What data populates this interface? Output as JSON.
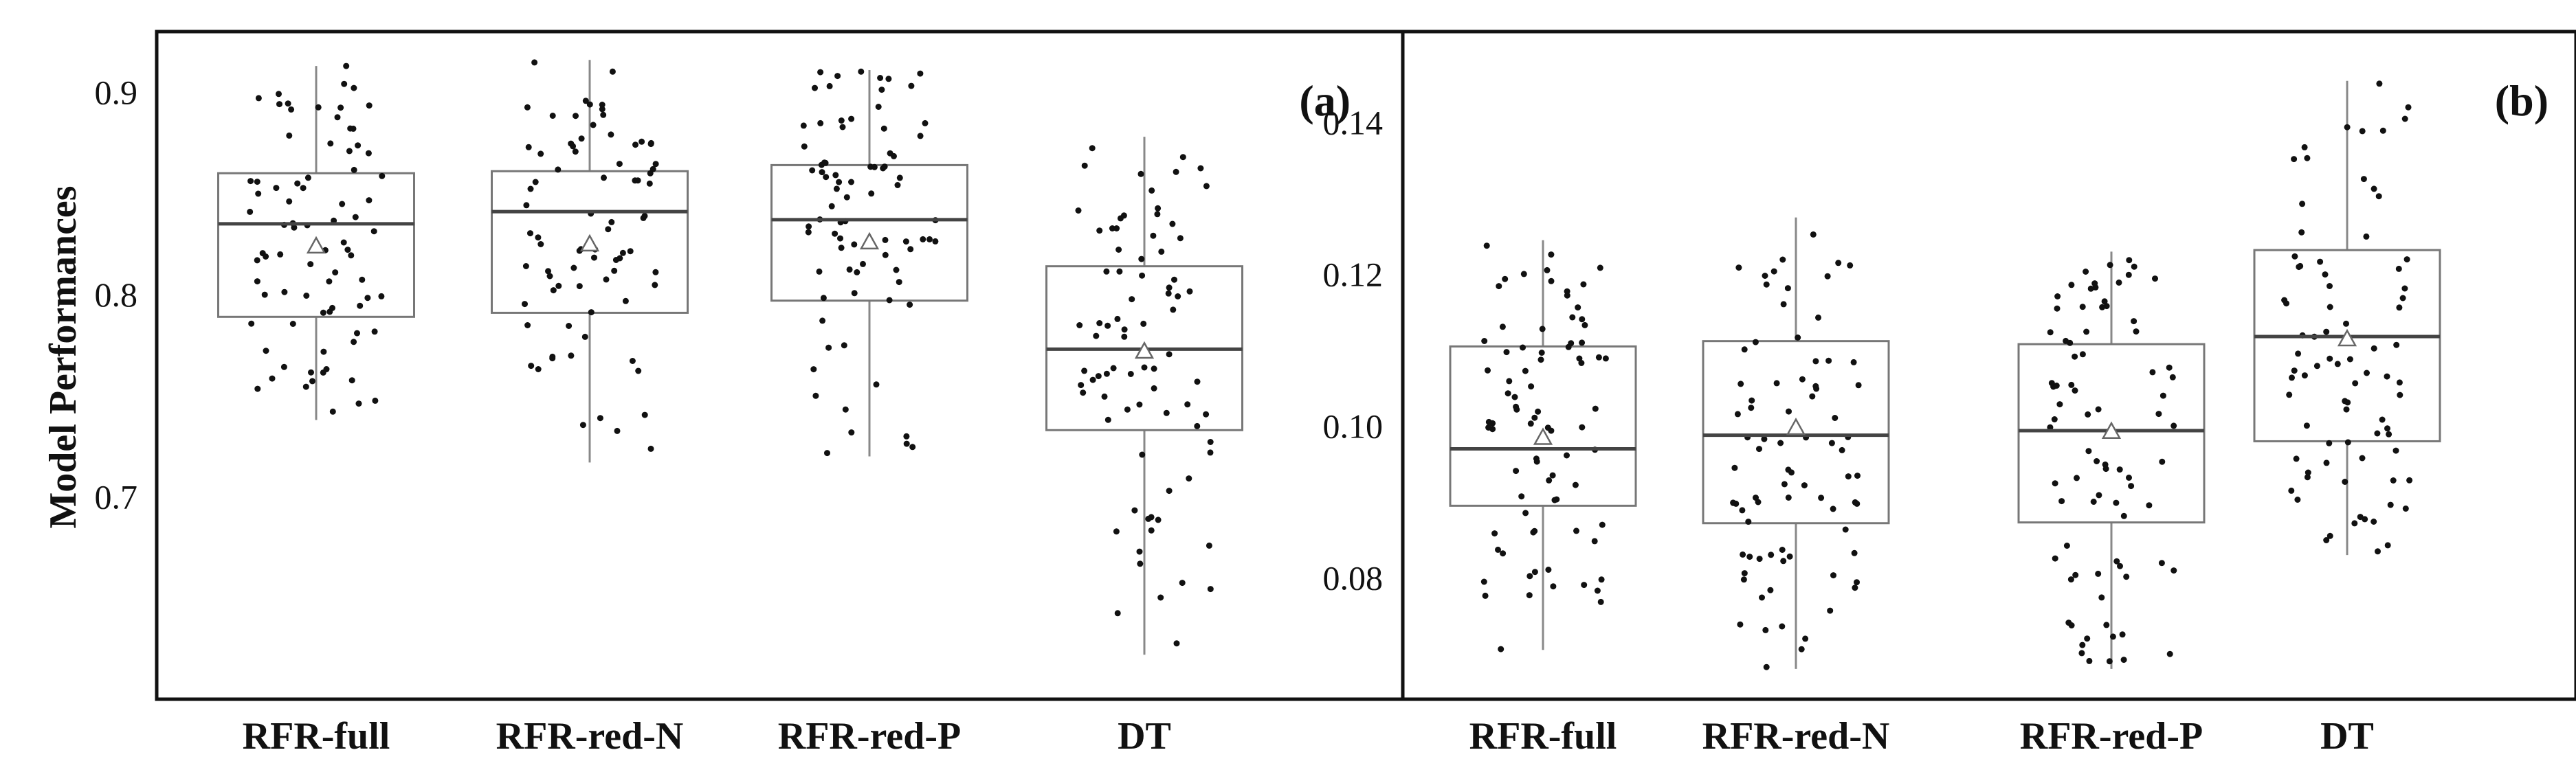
{
  "chart_data": [
    {
      "type": "box",
      "panel": "(a)",
      "ylabel": "Model Performances",
      "categories": [
        "RFR-full",
        "RFR-red-N",
        "RFR-red-P",
        "DT"
      ],
      "yticks": [
        0.7,
        0.8,
        0.9
      ],
      "ytick_labels": [
        "0.7",
        "0.8",
        "0.9"
      ],
      "ylim": [
        0.6,
        0.93
      ],
      "boxes": [
        {
          "name": "RFR-full",
          "q1": 0.789,
          "median": 0.835,
          "q3": 0.86,
          "whisker_low": 0.738,
          "whisker_high": 0.913,
          "mean": 0.824
        },
        {
          "name": "RFR-red-N",
          "q1": 0.791,
          "median": 0.841,
          "q3": 0.861,
          "whisker_low": 0.717,
          "whisker_high": 0.916,
          "mean": 0.825
        },
        {
          "name": "RFR-red-P",
          "q1": 0.797,
          "median": 0.837,
          "q3": 0.864,
          "whisker_low": 0.72,
          "whisker_high": 0.911,
          "mean": 0.826
        },
        {
          "name": "DT",
          "q1": 0.733,
          "median": 0.773,
          "q3": 0.814,
          "whisker_low": 0.622,
          "whisker_high": 0.878,
          "mean": 0.772
        }
      ],
      "points_per_group": 80
    },
    {
      "type": "box",
      "panel": "(b)",
      "ylabel": "",
      "categories": [
        "RFR-full",
        "RFR-red-N",
        "RFR-red-P",
        "DT"
      ],
      "yticks": [
        0.08,
        0.1,
        0.12,
        0.14
      ],
      "ytick_labels": [
        "0.08",
        "0.10",
        "0.12",
        "0.14"
      ],
      "ylim": [
        0.064,
        0.152
      ],
      "boxes": [
        {
          "name": "RFR-full",
          "q1": 0.0895,
          "median": 0.097,
          "q3": 0.1105,
          "whisker_low": 0.0705,
          "whisker_high": 0.1245,
          "mean": 0.0985
        },
        {
          "name": "RFR-red-N",
          "q1": 0.0872,
          "median": 0.0988,
          "q3": 0.1112,
          "whisker_low": 0.068,
          "whisker_high": 0.1275,
          "mean": 0.0998
        },
        {
          "name": "RFR-red-P",
          "q1": 0.0873,
          "median": 0.0994,
          "q3": 0.1108,
          "whisker_low": 0.068,
          "whisker_high": 0.123,
          "mean": 0.0993
        },
        {
          "name": "DT",
          "q1": 0.098,
          "median": 0.1118,
          "q3": 0.1232,
          "whisker_low": 0.083,
          "whisker_high": 0.1455,
          "mean": 0.1115
        }
      ],
      "points_per_group": 80
    }
  ]
}
